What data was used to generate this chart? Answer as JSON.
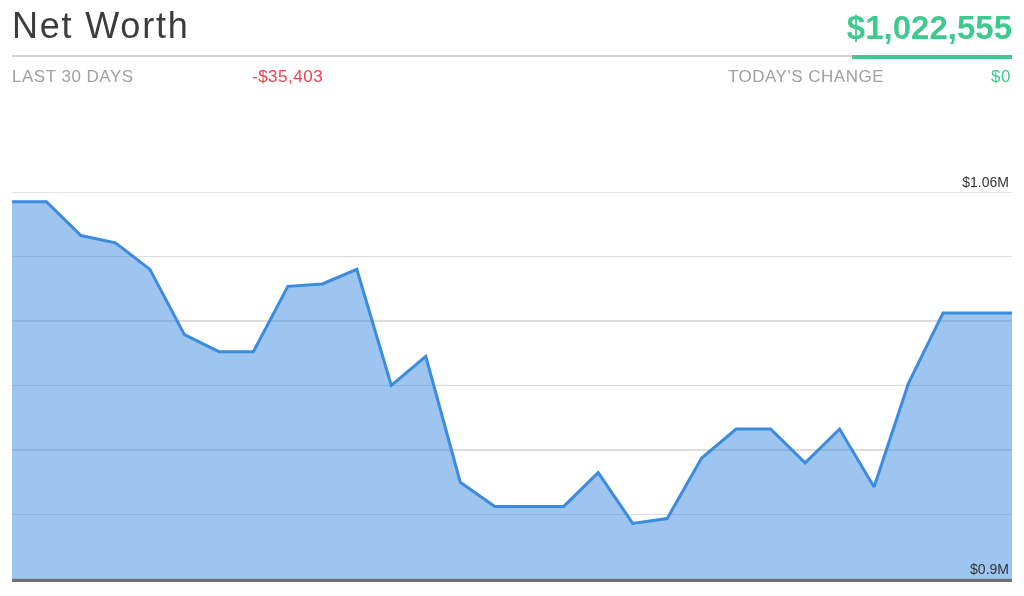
{
  "chart_data": {
    "type": "area",
    "title": "Net Worth",
    "annotations": [
      "$1,022,555",
      "LAST 30 DAYS",
      "-$35,403",
      "TODAY'S CHANGE",
      "$0"
    ],
    "categories": [
      null,
      null,
      null,
      null,
      null,
      null,
      null,
      null,
      null,
      null,
      null,
      null,
      null,
      null,
      null,
      null,
      null,
      null,
      null,
      null,
      null,
      null,
      null,
      null,
      null,
      null,
      null,
      null,
      null,
      null
    ],
    "series": [
      {
        "color": "#3b8bdf",
        "values": [
          1.056,
          1.056,
          1.042,
          1.039,
          1.028,
          1.001,
          0.994,
          0.994,
          1.021,
          1.022,
          1.028,
          0.98,
          0.992,
          0.94,
          0.93,
          0.93,
          0.93,
          0.944,
          0.923,
          0.925,
          0.95,
          0.962,
          0.962,
          0.948,
          0.962,
          0.938,
          0.981,
          1.01,
          1.01,
          1.01
        ]
      }
    ],
    "ylim": [
      0.9,
      1.06
    ],
    "yticks": [
      {
        "value": 0.9,
        "label": "$0.9M"
      },
      {
        "value": 0.92667,
        "label": null
      },
      {
        "value": 0.95333,
        "label": null
      },
      {
        "value": 0.98,
        "label": null
      },
      {
        "value": 1.00667,
        "label": null
      },
      {
        "value": 1.03333,
        "label": null
      },
      {
        "value": 1.06,
        "label": "$1.06M"
      }
    ],
    "grid": true,
    "tick_labels": "y"
  }
}
